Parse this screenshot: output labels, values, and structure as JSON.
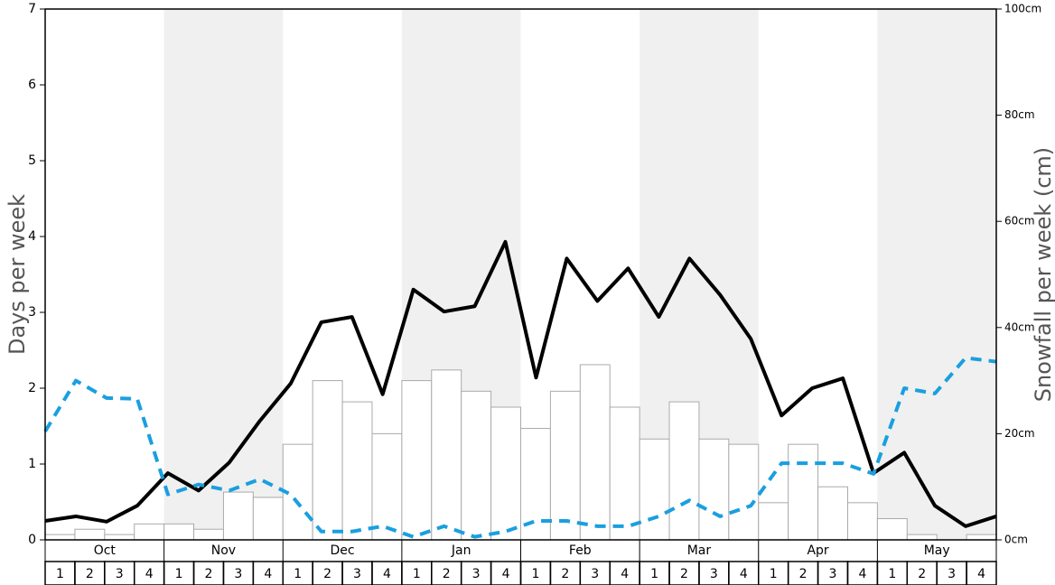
{
  "chart_data": {
    "type": "bar-line",
    "y_label": "Days per week",
    "y2_label": "Snowfall per week (cm)",
    "months": [
      "Oct",
      "Nov",
      "Dec",
      "Jan",
      "Feb",
      "Mar",
      "Apr",
      "May"
    ],
    "categories": [
      "1",
      "2",
      "3",
      "4",
      "1",
      "2",
      "3",
      "4",
      "1",
      "2",
      "3",
      "4",
      "1",
      "2",
      "3",
      "4",
      "1",
      "2",
      "3",
      "4",
      "1",
      "2",
      "3",
      "4",
      "1",
      "2",
      "3",
      "4",
      "1",
      "2",
      "3",
      "4"
    ],
    "ylim": [
      0,
      7
    ],
    "yticks": [
      0,
      1,
      2,
      3,
      4,
      5,
      6,
      7
    ],
    "y2lim": [
      0,
      100
    ],
    "y2ticks": [
      {
        "value": 0,
        "label": "0cm"
      },
      {
        "value": 20,
        "label": "20cm"
      },
      {
        "value": 40,
        "label": "40cm"
      },
      {
        "value": 60,
        "label": "60cm"
      },
      {
        "value": 80,
        "label": "80cm"
      },
      {
        "value": 100,
        "label": "100cm"
      }
    ],
    "series": [
      {
        "type": "bar",
        "axis": "y2",
        "color": "#ffffff",
        "values": [
          1,
          2,
          1,
          3,
          3,
          2,
          9,
          8,
          18,
          30,
          26,
          20,
          30,
          32,
          28,
          25,
          21,
          28,
          33,
          25,
          19,
          26,
          19,
          18,
          7,
          18,
          10,
          7,
          4,
          1,
          0,
          1
        ]
      },
      {
        "type": "line",
        "color": "#000000",
        "values": [
          0.25,
          0.31,
          0.24,
          0.45,
          0.88,
          0.65,
          1.02,
          1.57,
          2.06,
          2.87,
          2.94,
          1.92,
          3.3,
          3.01,
          3.08,
          3.93,
          2.14,
          3.71,
          3.15,
          3.58,
          2.94,
          3.71,
          3.23,
          2.65,
          1.64,
          2.0,
          2.13,
          0.88,
          1.15,
          0.45,
          0.18,
          0.31
        ]
      },
      {
        "type": "dashed",
        "color": "#1a9fe0",
        "values": [
          1.43,
          2.1,
          1.87,
          1.86,
          0.6,
          0.73,
          0.65,
          0.8,
          0.6,
          0.11,
          0.11,
          0.18,
          0.04,
          0.18,
          0.04,
          0.11,
          0.25,
          0.25,
          0.18,
          0.18,
          0.31,
          0.52,
          0.31,
          0.45,
          1.01,
          1.01,
          1.01,
          0.87,
          2.0,
          1.93,
          2.4,
          2.35
        ]
      }
    ]
  }
}
